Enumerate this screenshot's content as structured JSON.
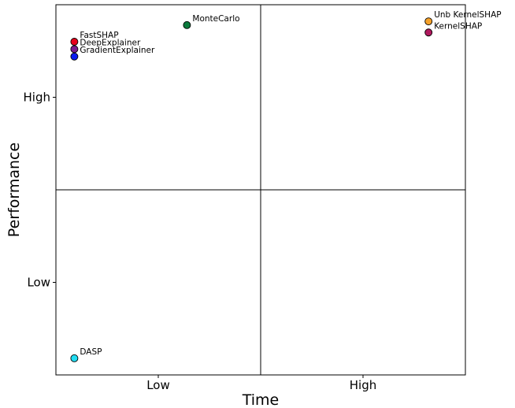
{
  "chart_data": {
    "type": "scatter",
    "title": "",
    "xlabel": "Time",
    "ylabel": "Performance",
    "xlim": [
      0,
      2
    ],
    "ylim": [
      0,
      2
    ],
    "x_ticks": [
      {
        "value": 0.5,
        "label": "Low"
      },
      {
        "value": 1.5,
        "label": "High"
      }
    ],
    "y_ticks": [
      {
        "value": 0.5,
        "label": "Low"
      },
      {
        "value": 1.5,
        "label": "High"
      }
    ],
    "quadrant_dividers": {
      "x": 1.0,
      "y": 1.0
    },
    "grid": false,
    "points": [
      {
        "name": "FastSHAP",
        "x": 0.09,
        "y": 1.8,
        "color": "#e8001c"
      },
      {
        "name": "DeepExplainer",
        "x": 0.09,
        "y": 1.76,
        "color": "#7a1c8e"
      },
      {
        "name": "GradientExplainer",
        "x": 0.09,
        "y": 1.72,
        "color": "#0a1cf0"
      },
      {
        "name": "MonteCarlo",
        "x": 0.64,
        "y": 1.89,
        "color": "#0b7a3c"
      },
      {
        "name": "Unb KernelSHAP",
        "x": 1.82,
        "y": 1.91,
        "color": "#f5a12a"
      },
      {
        "name": "KernelSHAP",
        "x": 1.82,
        "y": 1.85,
        "color": "#b0195e"
      },
      {
        "name": "DASP",
        "x": 0.09,
        "y": 0.09,
        "color": "#22ddf2"
      }
    ]
  }
}
